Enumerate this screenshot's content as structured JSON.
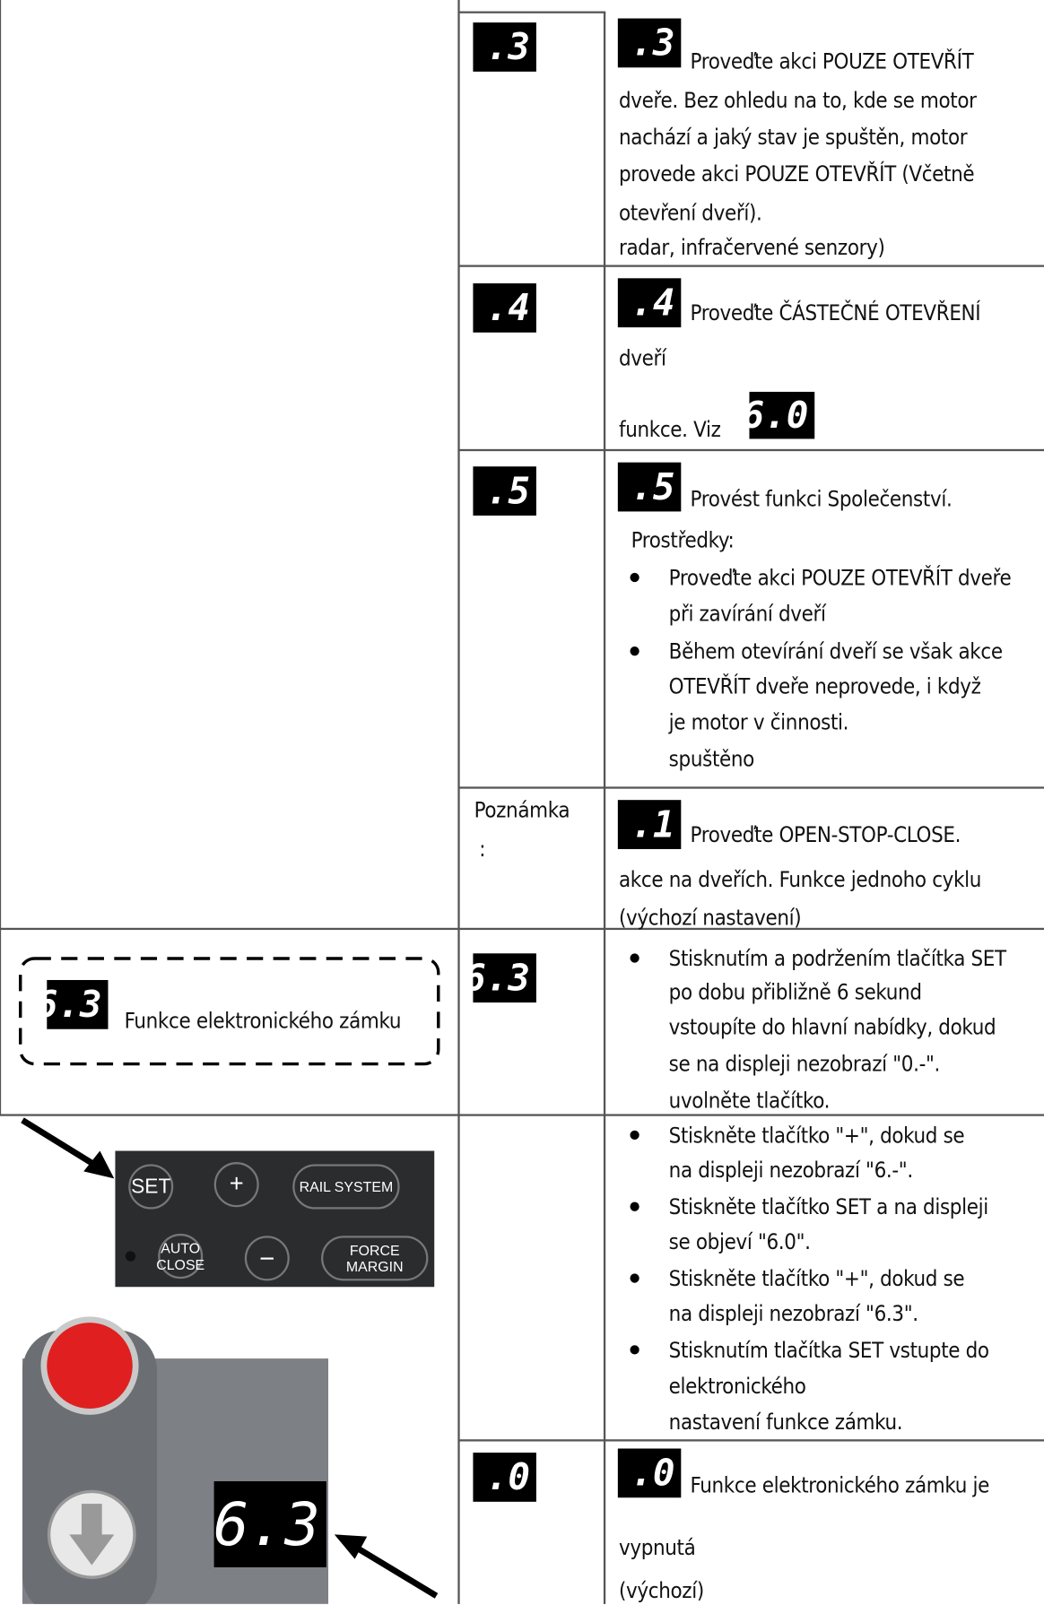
{
  "rows": [
    {
      "code": ".3",
      "icon": ".3",
      "lines": [
        "Proveďte akci POUZE OTEVŘÍT",
        "dveře. Bez ohledu na to, kde se motor",
        "nachází a jaký stav je spuštěn, motor",
        "provede akci POUZE OTEVŘÍT (Včetně",
        "otevření dveří).",
        "radar, infračervené senzory)"
      ]
    },
    {
      "code": ".4",
      "icon": ".4",
      "lines": [
        "Proveďte ČÁSTEČNÉ OTEVŘENÍ",
        "dveří",
        "funkce. Viz"
      ],
      "ref_icon": "6.0"
    },
    {
      "code": ".5",
      "icon": ".5",
      "lines": [
        "Provést funkci Společenství.",
        "Prostředky:"
      ],
      "bullets": [
        [
          "Proveďte akci POUZE OTEVŘÍT dveře",
          "při zavírání dveří"
        ],
        [
          "Během otevírání dveří se však akce",
          "OTEVŘÍT dveře neprovede, i když",
          "je motor v činnosti.",
          "spuštěno"
        ]
      ]
    },
    {
      "code": [
        "Poznámka",
        ":"
      ],
      "icon": ".1",
      "lines": [
        "Proveďte OPEN-STOP-CLOSE.",
        "akce na dveřích. Funkce jednoho cyklu",
        "(výchozí nastavení)"
      ]
    },
    {
      "code": "6.3",
      "bullets": [
        [
          "Stisknutím a podržením tlačítka SET",
          "po dobu přibližně 6 sekund",
          "vstoupíte do hlavní nabídky, dokud",
          "se na displeji nezobrazí \"0.-\".",
          "uvolněte tlačítko."
        ]
      ]
    },
    {
      "bullets": [
        [
          "Stiskněte tlačítko \"+\", dokud se",
          "na displeji nezobrazí \"6.-\"."
        ],
        [
          "Stiskněte tlačítko SET a na displeji",
          "se objeví \"6.0\"."
        ],
        [
          "Stiskněte tlačítko \"+\", dokud se",
          "na displeji nezobrazí \"6.3\"."
        ],
        [
          "Stisknutím tlačítka SET vstupte do",
          "elektronického",
          "nastavení funkce zámku."
        ]
      ]
    },
    {
      "code": ".0",
      "icon": ".0",
      "lines": [
        "Funkce elektronického zámku je",
        "vypnutá",
        "(výchozí)"
      ]
    }
  ],
  "left": {
    "box_icon": "6.3",
    "box_label": "Funkce elektronického zámku",
    "keypad": {
      "set": "SET",
      "plus": "+",
      "rail": "RAIL SYSTEM",
      "auto": [
        "AUTO",
        "CLOSE"
      ],
      "minus": "−",
      "force": "FORCE MARGIN"
    },
    "controller_display": "6.3"
  }
}
